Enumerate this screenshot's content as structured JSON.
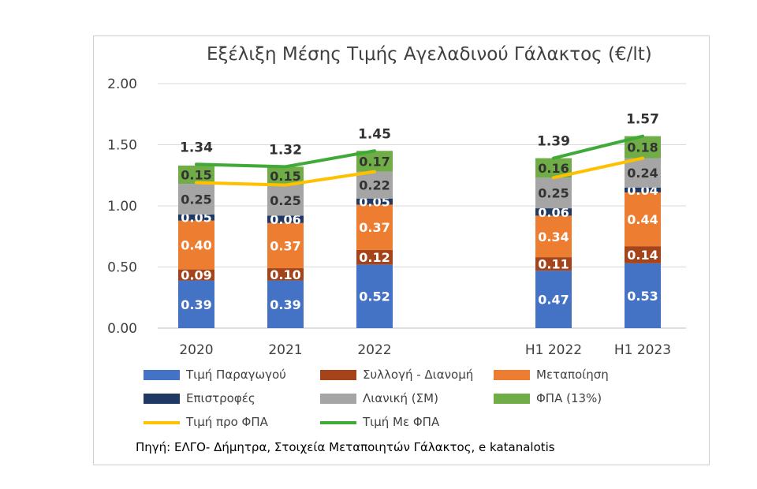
{
  "chart_data": {
    "type": "bar",
    "title": "Εξέλιξη Μέσης Τιμής Αγελαδινού Γάλακτος (€/lt)",
    "categories": [
      "2020",
      "2021",
      "2022",
      "H1 2022",
      "H1 2023"
    ],
    "ylim": [
      0,
      2
    ],
    "yticks": [
      "0.00",
      "0.50",
      "1.00",
      "1.50",
      "2.00"
    ],
    "grid": true,
    "legend_position": "bottom",
    "stacked_series": [
      {
        "name": "Τιμή Παραγωγού",
        "color": "#4472C4",
        "values": [
          0.39,
          0.39,
          0.52,
          0.47,
          0.53
        ],
        "labels": [
          "0.39",
          "0.39",
          "0.52",
          "0.47",
          "0.53"
        ]
      },
      {
        "name": "Συλλογή - Διανομή",
        "color": "#A5431B",
        "values": [
          0.09,
          0.1,
          0.12,
          0.11,
          0.14
        ],
        "labels": [
          "0.09",
          "0.10",
          "0.12",
          "0.11",
          "0.14"
        ]
      },
      {
        "name": "Μεταποίηση",
        "color": "#ED7D31",
        "values": [
          0.4,
          0.37,
          0.37,
          0.34,
          0.44
        ],
        "labels": [
          "0.40",
          "0.37",
          "0.37",
          "0.34",
          "0.44"
        ]
      },
      {
        "name": "Επιστροφές",
        "color": "#1F3864",
        "values": [
          0.05,
          0.06,
          0.05,
          0.06,
          0.04
        ],
        "labels": [
          "0.05",
          "0.06",
          "0.05",
          "0.06",
          "0.04"
        ]
      },
      {
        "name": "Λιανική (ΣΜ)",
        "color": "#A5A5A5",
        "values": [
          0.25,
          0.25,
          0.22,
          0.25,
          0.24
        ],
        "labels": [
          "0.25",
          "0.25",
          "0.22",
          "0.25",
          "0.24"
        ]
      },
      {
        "name": "ΦΠΑ (13%)",
        "color": "#70AD47",
        "values": [
          0.15,
          0.15,
          0.17,
          0.16,
          0.18
        ],
        "labels": [
          "0.15",
          "0.15",
          "0.17",
          "0.16",
          "0.18"
        ]
      }
    ],
    "line_series": [
      {
        "name": "Τιμή προ ΦΠΑ",
        "color": "#FFC000",
        "values": [
          1.19,
          1.17,
          1.28,
          1.23,
          1.39
        ]
      },
      {
        "name": "Τιμή Με ΦΠΑ",
        "color": "#3FAA37",
        "values": [
          1.34,
          1.32,
          1.45,
          1.39,
          1.57
        ]
      }
    ],
    "total_labels": [
      "1.34",
      "1.32",
      "1.45",
      "1.39",
      "1.57"
    ]
  },
  "source_text": "Πηγή: ΕΛΓΟ- Δήμητρα, Στοιχεία Μεταποιητών Γάλακτος, e katanalotis"
}
